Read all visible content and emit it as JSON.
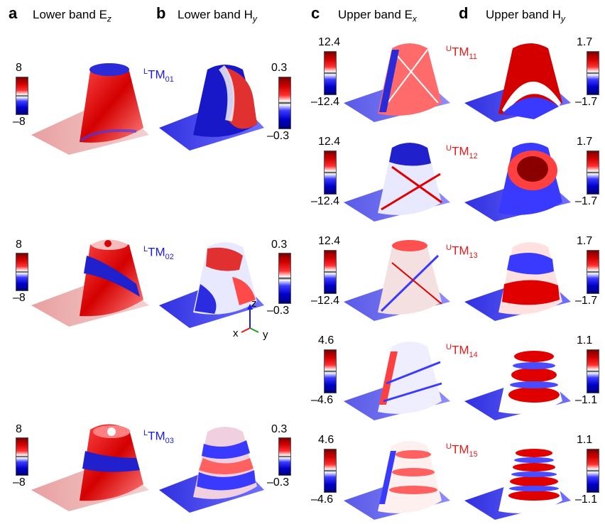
{
  "panels": [
    {
      "letter": "a",
      "title_main": "Lower band E",
      "title_sub": "z",
      "sub_italic": true
    },
    {
      "letter": "b",
      "title_main": "Lower band H",
      "title_sub": "y",
      "sub_italic": true
    },
    {
      "letter": "c",
      "title_main": "Upper band E",
      "title_sub": "x",
      "sub_italic": true
    },
    {
      "letter": "d",
      "title_main": "Upper band H",
      "title_sub": "y",
      "sub_italic": true
    }
  ],
  "lower": {
    "ez_colorbar": {
      "max": "8",
      "min": "–8"
    },
    "hy_colorbar": {
      "max": "0.3",
      "min": "–0.3"
    },
    "modes": [
      {
        "sup": "L",
        "base": "TM",
        "sub": "01"
      },
      {
        "sup": "L",
        "base": "TM",
        "sub": "02"
      },
      {
        "sup": "L",
        "base": "TM",
        "sub": "03"
      }
    ]
  },
  "upper": {
    "rows": [
      {
        "ex_max": "12.4",
        "ex_min": "–12.4",
        "hy_max": "1.7",
        "hy_min": "–1.7",
        "sup": "U",
        "base": "TM",
        "sub": "11"
      },
      {
        "ex_max": "12.4",
        "ex_min": "–12.4",
        "hy_max": "1.7",
        "hy_min": "–1.7",
        "sup": "U",
        "base": "TM",
        "sub": "12"
      },
      {
        "ex_max": "12.4",
        "ex_min": "–12.4",
        "hy_max": "1.7",
        "hy_min": "–1.7",
        "sup": "U",
        "base": "TM",
        "sub": "13"
      },
      {
        "ex_max": "4.6",
        "ex_min": "–4.6",
        "hy_max": "1.1",
        "hy_min": "–1.1",
        "sup": "U",
        "base": "TM",
        "sub": "14"
      },
      {
        "ex_max": "4.6",
        "ex_min": "–4.6",
        "hy_max": "1.1",
        "hy_min": "–1.1",
        "sup": "U",
        "base": "TM",
        "sub": "15"
      }
    ]
  },
  "axes": {
    "z": "z",
    "x": "x",
    "y": "y"
  },
  "colors": {
    "lower_mode": "#1a1ae6",
    "upper_mode": "#e61a1a",
    "positive": "#d40000",
    "negative": "#0000cc"
  }
}
